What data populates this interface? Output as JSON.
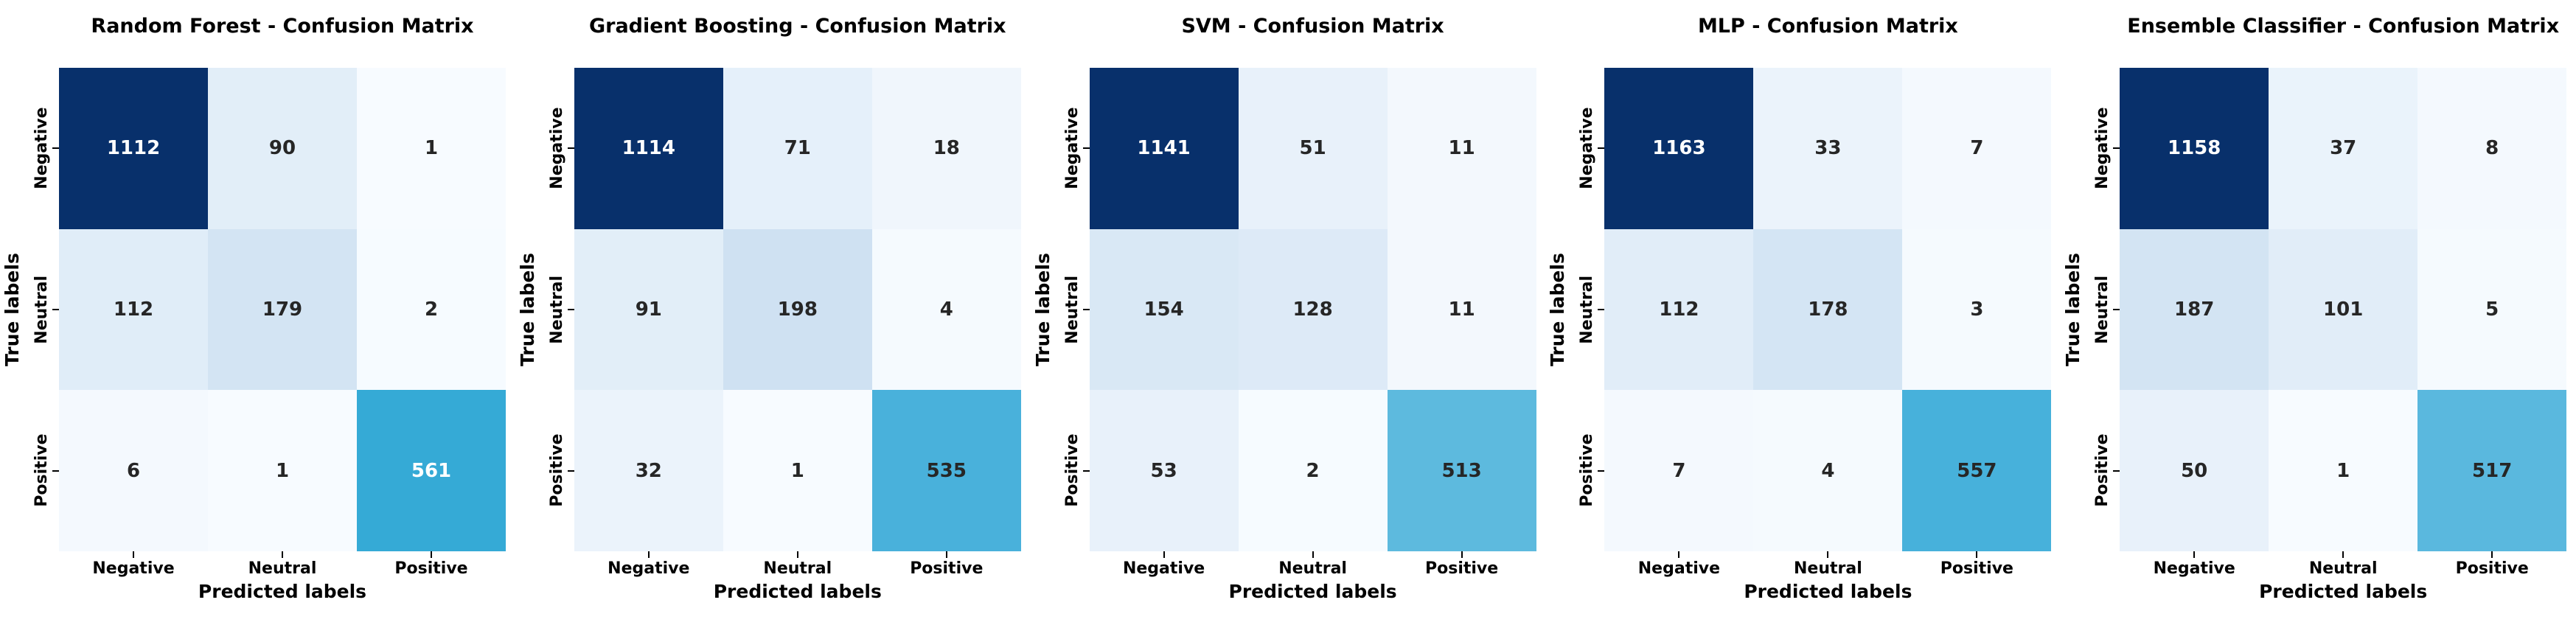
{
  "figure": {
    "background": "#ffffff",
    "colormap_low": "#f7fbff",
    "colormap_high": "#08306b",
    "annot_dark_text": "#262626",
    "annot_light_text": "#ffffff"
  },
  "chart_data": [
    {
      "type": "heatmap",
      "title": "Random Forest - Confusion Matrix",
      "xlabel": "Predicted labels",
      "ylabel": "True labels",
      "x_categories": [
        "Negative",
        "Neutral",
        "Positive"
      ],
      "y_categories": [
        "Negative",
        "Neutral",
        "Positive"
      ],
      "values": [
        [
          1112,
          90,
          1
        ],
        [
          112,
          179,
          2
        ],
        [
          6,
          1,
          561
        ]
      ],
      "cell_colors": [
        [
          "#08306b",
          "#e2eef8",
          "#f7fbff"
        ],
        [
          "#e0edf8",
          "#d3e4f3",
          "#f6fbff"
        ],
        [
          "#f4f9fe",
          "#f7fbff",
          "#35aad6"
        ]
      ],
      "cell_styles": [
        [
          "background:#08306b;color:#ffffff",
          "background:#e2eef8;color:#262626",
          "background:#f7fbff;color:#262626"
        ],
        [
          "background:#e0edf8;color:#262626",
          "background:#d3e4f3;color:#262626",
          "background:#f6fbff;color:#262626"
        ],
        [
          "background:#f4f9fe;color:#262626",
          "background:#f7fbff;color:#262626",
          "background:#35aad6;color:#ffffff"
        ]
      ]
    },
    {
      "type": "heatmap",
      "title": "Gradient Boosting - Confusion Matrix",
      "xlabel": "Predicted labels",
      "ylabel": "True labels",
      "x_categories": [
        "Negative",
        "Neutral",
        "Positive"
      ],
      "y_categories": [
        "Negative",
        "Neutral",
        "Positive"
      ],
      "values": [
        [
          1114,
          71,
          18
        ],
        [
          91,
          198,
          4
        ],
        [
          32,
          1,
          535
        ]
      ],
      "cell_colors": [
        [
          "#08306b",
          "#e5f0fa",
          "#f0f6fc"
        ],
        [
          "#e2eef8",
          "#cfe1f2",
          "#f5fafe"
        ],
        [
          "#ebf3fb",
          "#f7fbff",
          "#49b1db"
        ]
      ],
      "cell_styles": [
        [
          "background:#08306b;color:#ffffff",
          "background:#e5f0fa;color:#262626",
          "background:#f0f6fc;color:#262626"
        ],
        [
          "background:#e2eef8;color:#262626",
          "background:#cfe1f2;color:#262626",
          "background:#f5fafe;color:#262626"
        ],
        [
          "background:#ebf3fb;color:#262626",
          "background:#f7fbff;color:#262626",
          "background:#49b1db;color:#262626"
        ]
      ]
    },
    {
      "type": "heatmap",
      "title": "SVM - Confusion Matrix",
      "xlabel": "Predicted labels",
      "ylabel": "True labels",
      "x_categories": [
        "Negative",
        "Neutral",
        "Positive"
      ],
      "y_categories": [
        "Negative",
        "Neutral",
        "Positive"
      ],
      "values": [
        [
          1141,
          51,
          11
        ],
        [
          154,
          128,
          11
        ],
        [
          53,
          2,
          513
        ]
      ],
      "cell_colors": [
        [
          "#08306b",
          "#e8f1fa",
          "#f3f8fd"
        ],
        [
          "#d9e8f5",
          "#ddeaf7",
          "#f3f8fd"
        ],
        [
          "#e8f1fa",
          "#f6fbff",
          "#5dbade"
        ]
      ],
      "cell_styles": [
        [
          "background:#08306b;color:#ffffff",
          "background:#e8f1fa;color:#262626",
          "background:#f3f8fd;color:#262626"
        ],
        [
          "background:#d9e8f5;color:#262626",
          "background:#ddeaf7;color:#262626",
          "background:#f3f8fd;color:#262626"
        ],
        [
          "background:#e8f1fa;color:#262626",
          "background:#f6fbff;color:#262626",
          "background:#5dbade;color:#262626"
        ]
      ]
    },
    {
      "type": "heatmap",
      "title": "MLP - Confusion Matrix",
      "xlabel": "Predicted labels",
      "ylabel": "True labels",
      "x_categories": [
        "Negative",
        "Neutral",
        "Positive"
      ],
      "y_categories": [
        "Negative",
        "Neutral",
        "Positive"
      ],
      "values": [
        [
          1163,
          33,
          7
        ],
        [
          112,
          178,
          3
        ],
        [
          7,
          4,
          557
        ]
      ],
      "cell_colors": [
        [
          "#08306b",
          "#ebf3fb",
          "#f4f9fe"
        ],
        [
          "#e1edf8",
          "#d4e5f4",
          "#f5fafe"
        ],
        [
          "#f4f9fe",
          "#f5fafe",
          "#47b1db"
        ]
      ],
      "cell_styles": [
        [
          "background:#08306b;color:#ffffff",
          "background:#ebf3fb;color:#262626",
          "background:#f4f9fe;color:#262626"
        ],
        [
          "background:#e1edf8;color:#262626",
          "background:#d4e5f4;color:#262626",
          "background:#f5fafe;color:#262626"
        ],
        [
          "background:#f4f9fe;color:#262626",
          "background:#f5fafe;color:#262626",
          "background:#47b1db;color:#262626"
        ]
      ]
    },
    {
      "type": "heatmap",
      "title": "Ensemble Classifier - Confusion Matrix",
      "xlabel": "Predicted labels",
      "ylabel": "True labels",
      "x_categories": [
        "Negative",
        "Neutral",
        "Positive"
      ],
      "y_categories": [
        "Negative",
        "Neutral",
        "Positive"
      ],
      "values": [
        [
          1158,
          37,
          8
        ],
        [
          187,
          101,
          5
        ],
        [
          50,
          1,
          517
        ]
      ],
      "cell_colors": [
        [
          "#08306b",
          "#eaf3fb",
          "#f4f9fe"
        ],
        [
          "#d3e4f3",
          "#e1edf8",
          "#f5fafe"
        ],
        [
          "#e8f1fa",
          "#f7fbff",
          "#5ab8de"
        ]
      ],
      "cell_styles": [
        [
          "background:#08306b;color:#ffffff",
          "background:#eaf3fb;color:#262626",
          "background:#f4f9fe;color:#262626"
        ],
        [
          "background:#d3e4f3;color:#262626",
          "background:#e1edf8;color:#262626",
          "background:#f5fafe;color:#262626"
        ],
        [
          "background:#e8f1fa;color:#262626",
          "background:#f7fbff;color:#262626",
          "background:#5ab8de;color:#262626"
        ]
      ]
    }
  ]
}
